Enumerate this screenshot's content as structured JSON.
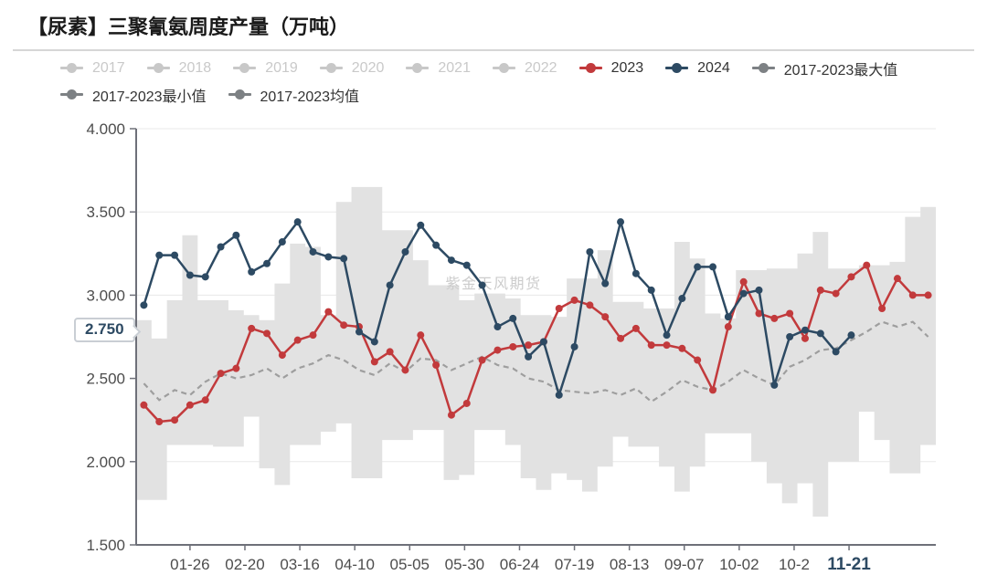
{
  "title": "【尿素】三聚氰氨周度产量（万吨）",
  "watermark": "紫金天风期货",
  "axis_pointer_label": "2.750",
  "legend": {
    "rows": [
      [
        {
          "label": "2017",
          "disabled": true
        },
        {
          "label": "2018",
          "disabled": true
        },
        {
          "label": "2019",
          "disabled": true
        },
        {
          "label": "2020",
          "disabled": true
        },
        {
          "label": "2021",
          "disabled": true
        },
        {
          "label": "2022",
          "disabled": true
        },
        {
          "label": "2023",
          "disabled": false,
          "color": "#c23a3c"
        },
        {
          "label": "2024",
          "disabled": false,
          "color": "#2d4a63"
        },
        {
          "label": "2017-2023最大值",
          "disabled": false,
          "color": "#7d8184"
        }
      ],
      [
        {
          "label": "2017-2023最小值",
          "disabled": false,
          "color": "#7d8184"
        },
        {
          "label": "2017-2023均值",
          "disabled": false,
          "color": "#7d8184"
        }
      ]
    ],
    "disabled_color": "#c8c8c8"
  },
  "chart_data": {
    "type": "line",
    "title": "【尿素】三聚氰氨周度产量（万吨）",
    "ylim": [
      1.5,
      4.0
    ],
    "y_tick_labels": [
      "1.500",
      "2.000",
      "2.500",
      "3.000",
      "3.500",
      "4.000"
    ],
    "x_tick_labels": [
      "01-26",
      "02-20",
      "03-16",
      "04-10",
      "05-05",
      "05-30",
      "06-24",
      "07-19",
      "08-13",
      "09-07",
      "10-02",
      "10-2",
      "11-21"
    ],
    "x_tick_week_offsets": [
      3,
      6.571,
      10.143,
      13.714,
      17.286,
      20.857,
      24.429,
      28,
      31.571,
      35.143,
      38.714,
      42.286,
      45.857
    ],
    "x_tick_highlight_last": true,
    "grid": true,
    "legend_position": "top",
    "hidden_series": [
      "2017",
      "2018",
      "2019",
      "2020",
      "2021",
      "2022"
    ],
    "n_points": 52,
    "series": [
      {
        "name": "2017-2023最大值",
        "role": "band-upper",
        "color": "#e2e2e2",
        "values": [
          2.85,
          2.74,
          2.97,
          3.36,
          2.97,
          2.97,
          2.91,
          2.88,
          2.85,
          3.07,
          3.31,
          3.29,
          2.88,
          3.56,
          3.65,
          3.65,
          3.39,
          3.39,
          3.21,
          3.06,
          3.06,
          2.97,
          3.01,
          3.01,
          2.98,
          2.88,
          2.88,
          2.87,
          3.1,
          3.1,
          3.27,
          2.96,
          2.96,
          2.92,
          2.92,
          3.32,
          3.22,
          2.89,
          2.86,
          3.15,
          3.15,
          3.16,
          3.16,
          3.25,
          3.38,
          3.16,
          3.16,
          3.18,
          3.18,
          3.2,
          3.47,
          3.53
        ]
      },
      {
        "name": "2017-2023最小值",
        "role": "band-lower",
        "color": "#e2e2e2",
        "values": [
          1.77,
          1.77,
          2.1,
          2.1,
          2.1,
          2.09,
          2.09,
          2.27,
          1.96,
          1.86,
          2.1,
          2.1,
          2.18,
          2.23,
          1.9,
          1.9,
          2.13,
          2.13,
          2.19,
          2.19,
          1.89,
          1.92,
          2.19,
          2.19,
          2.1,
          1.9,
          1.83,
          1.93,
          1.89,
          1.82,
          1.97,
          2.15,
          2.09,
          2.09,
          1.97,
          1.82,
          1.97,
          2.17,
          2.17,
          2.17,
          2.0,
          1.87,
          1.75,
          1.87,
          1.67,
          2.0,
          2.0,
          2.3,
          2.13,
          1.93,
          1.93,
          2.1
        ]
      },
      {
        "name": "2017-2023均值",
        "role": "mean-dashed",
        "color": "#9e9e9e",
        "values": [
          2.47,
          2.37,
          2.43,
          2.4,
          2.48,
          2.53,
          2.5,
          2.52,
          2.56,
          2.5,
          2.56,
          2.59,
          2.64,
          2.61,
          2.55,
          2.52,
          2.59,
          2.54,
          2.62,
          2.61,
          2.55,
          2.59,
          2.63,
          2.58,
          2.56,
          2.5,
          2.48,
          2.43,
          2.42,
          2.41,
          2.43,
          2.4,
          2.44,
          2.36,
          2.42,
          2.49,
          2.45,
          2.43,
          2.48,
          2.55,
          2.5,
          2.46,
          2.57,
          2.61,
          2.67,
          2.68,
          2.73,
          2.78,
          2.84,
          2.81,
          2.84,
          2.75
        ]
      },
      {
        "name": "2023",
        "role": "line",
        "color": "#c23a3c",
        "values": [
          2.34,
          2.24,
          2.25,
          2.34,
          2.37,
          2.53,
          2.56,
          2.8,
          2.77,
          2.64,
          2.73,
          2.76,
          2.9,
          2.82,
          2.81,
          2.6,
          2.66,
          2.55,
          2.76,
          2.58,
          2.28,
          2.35,
          2.61,
          2.67,
          2.69,
          2.7,
          2.72,
          2.92,
          2.97,
          2.94,
          2.87,
          2.74,
          2.8,
          2.7,
          2.7,
          2.68,
          2.61,
          2.43,
          2.81,
          3.08,
          2.89,
          2.86,
          2.89,
          2.74,
          3.03,
          3.01,
          3.11,
          3.18,
          2.92,
          3.1,
          3.0,
          3.0
        ]
      },
      {
        "name": "2024",
        "role": "line",
        "color": "#2d4a63",
        "values": [
          2.94,
          3.24,
          3.24,
          3.12,
          3.11,
          3.29,
          3.36,
          3.14,
          3.19,
          3.32,
          3.44,
          3.26,
          3.23,
          3.22,
          2.78,
          2.72,
          3.06,
          3.26,
          3.42,
          3.3,
          3.21,
          3.18,
          3.06,
          2.81,
          2.86,
          2.63,
          2.72,
          2.4,
          2.69,
          3.26,
          3.07,
          3.44,
          3.13,
          3.03,
          2.76,
          2.98,
          3.17,
          3.17,
          2.87,
          3.01,
          3.03,
          2.46,
          2.75,
          2.79,
          2.77,
          2.66,
          2.76
        ]
      }
    ],
    "colors": {
      "grid": "#e8e8e8",
      "axis": "#6e7079",
      "tick_label": "#4d4d4d",
      "x_last_label": "#2d4a63",
      "watermark": "#cccccc",
      "band": "#e2e2e2"
    }
  }
}
